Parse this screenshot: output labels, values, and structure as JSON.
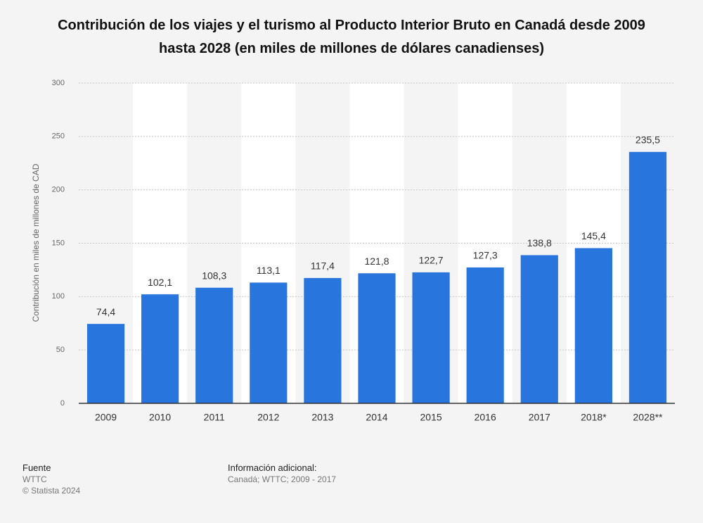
{
  "chart_data": {
    "type": "bar",
    "title": "Contribución de los viajes y el turismo al Producto Interior Bruto en Canadá desde 2009 hasta 2028 (en miles de millones de dólares canadienses)",
    "y_label": "Contribución en miles de millones de CAD",
    "categories": [
      "2009",
      "2010",
      "2011",
      "2012",
      "2013",
      "2014",
      "2015",
      "2016",
      "2017",
      "2018*",
      "2028**"
    ],
    "values": [
      74.4,
      102.1,
      108.3,
      113.1,
      117.4,
      121.8,
      122.7,
      127.3,
      138.8,
      145.4,
      235.5
    ],
    "value_labels": [
      "74,4",
      "102,1",
      "108,3",
      "113,1",
      "117,4",
      "121,8",
      "122,7",
      "127,3",
      "138,8",
      "145,4",
      "235,5"
    ],
    "color": "#2876dd",
    "ylim": [
      0,
      300
    ],
    "yticks": [
      0,
      50,
      100,
      150,
      200,
      250,
      300
    ],
    "grid": true
  },
  "footer": {
    "source_title": "Fuente",
    "source": "WTTC",
    "copyright": "© Statista 2024",
    "info_title": "Información adicional:",
    "info": "Canadá; WTTC; 2009 - 2017"
  }
}
